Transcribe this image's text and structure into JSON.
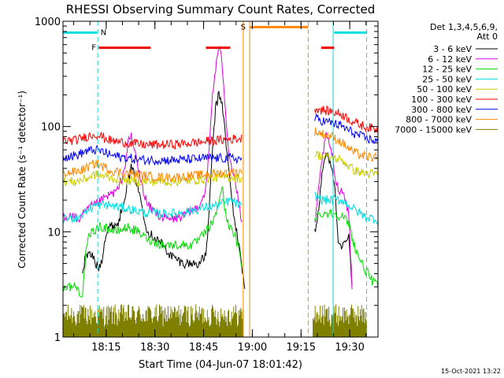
{
  "chart_data": {
    "type": "line",
    "title": "RHESSI Observing Summary Count Rates, Corrected",
    "xlabel": "Start Time (04-Jun-07 18:01:42)",
    "ylabel": "Corrected Count Rate (s⁻¹ detector⁻¹)",
    "timestamp": "15-Oct-2021 13:22",
    "x_range_minutes": [
      0,
      97
    ],
    "x_ticks": [
      {
        "label": "18:15",
        "min": 13.3
      },
      {
        "label": "18:30",
        "min": 28.3
      },
      {
        "label": "18:45",
        "min": 43.3
      },
      {
        "label": "19:00",
        "min": 58.3
      },
      {
        "label": "19:15",
        "min": 73.3
      },
      {
        "label": "19:30",
        "min": 88.3
      }
    ],
    "y_scale": "log",
    "ylim": [
      1,
      1000
    ],
    "y_ticks": [
      {
        "label": "1",
        "value": 1
      },
      {
        "label": "10",
        "value": 10
      },
      {
        "label": "100",
        "value": 100
      },
      {
        "label": "1000",
        "value": 1000
      }
    ],
    "legend_header": [
      "Det 1,3,4,5,6,9,",
      "Att 0"
    ],
    "series": [
      {
        "name": "3 - 6 keV",
        "color": "#000000",
        "points": [
          [
            6,
            4
          ],
          [
            7,
            6
          ],
          [
            9,
            6
          ],
          [
            10,
            5
          ],
          [
            11,
            4.5
          ],
          [
            12,
            5.5
          ],
          [
            13,
            9
          ],
          [
            14,
            11
          ],
          [
            17,
            12
          ],
          [
            18,
            16
          ],
          [
            20,
            30
          ],
          [
            21,
            40
          ],
          [
            22,
            35
          ],
          [
            24,
            20
          ],
          [
            25,
            14
          ],
          [
            26,
            10
          ],
          [
            28,
            9
          ],
          [
            30,
            8
          ],
          [
            33,
            6
          ],
          [
            37,
            5
          ],
          [
            40,
            5
          ],
          [
            42,
            5
          ],
          [
            44,
            6
          ],
          [
            45,
            15
          ],
          [
            46,
            60
          ],
          [
            47,
            150
          ],
          [
            48,
            200
          ],
          [
            49,
            170
          ],
          [
            50,
            80
          ],
          [
            51,
            40
          ],
          [
            52,
            20
          ],
          [
            53,
            12
          ],
          [
            54,
            8
          ],
          [
            55,
            5
          ],
          [
            56,
            3
          ]
        ],
        "segments": [
          [
            [
              77.5,
              10
            ],
            [
              78,
              11
            ],
            [
              79,
              20
            ],
            [
              80,
              40
            ],
            [
              81,
              55
            ],
            [
              82,
              50
            ],
            [
              83,
              40
            ],
            [
              84,
              20
            ],
            [
              84.5,
              10
            ],
            [
              85,
              7
            ],
            [
              86,
              7
            ],
            [
              87,
              8
            ],
            [
              88,
              9
            ],
            [
              89,
              3
            ]
          ]
        ]
      },
      {
        "name": "6 - 12 keV",
        "color": "#dd00dd",
        "points": [
          [
            0,
            14
          ],
          [
            3,
            14
          ],
          [
            5,
            13
          ],
          [
            8,
            17
          ],
          [
            10,
            18
          ],
          [
            12,
            20
          ],
          [
            14,
            22
          ],
          [
            17,
            25
          ],
          [
            19,
            40
          ],
          [
            20,
            70
          ],
          [
            21,
            80
          ],
          [
            22,
            60
          ],
          [
            24,
            30
          ],
          [
            26,
            18
          ],
          [
            30,
            14
          ],
          [
            33,
            13
          ],
          [
            37,
            14
          ],
          [
            40,
            16
          ],
          [
            42,
            18
          ],
          [
            44,
            25
          ],
          [
            45,
            60
          ],
          [
            46,
            200
          ],
          [
            47,
            350
          ],
          [
            48,
            580
          ],
          [
            49,
            400
          ],
          [
            50,
            150
          ],
          [
            51,
            60
          ],
          [
            52,
            40
          ],
          [
            53,
            30
          ],
          [
            54,
            20
          ],
          [
            55,
            12
          ]
        ],
        "segments": [
          [
            [
              77.5,
              12
            ],
            [
              78,
              15
            ],
            [
              79,
              30
            ],
            [
              80,
              55
            ],
            [
              81,
              80
            ],
            [
              82,
              70
            ],
            [
              83,
              50
            ],
            [
              84,
              30
            ],
            [
              85,
              25
            ],
            [
              86,
              25
            ],
            [
              87,
              20
            ],
            [
              88,
              15
            ],
            [
              89,
              3
            ]
          ]
        ]
      },
      {
        "name": "12 - 25 keV",
        "color": "#00dd00",
        "points": [
          [
            0,
            3
          ],
          [
            4,
            3
          ],
          [
            6,
            2.5
          ],
          [
            7,
            6
          ],
          [
            8,
            9
          ],
          [
            9,
            10
          ],
          [
            11,
            11
          ],
          [
            13,
            11
          ],
          [
            16,
            10
          ],
          [
            20,
            11
          ],
          [
            23,
            10
          ],
          [
            25,
            9
          ],
          [
            28,
            8
          ],
          [
            31,
            7.5
          ],
          [
            35,
            7.5
          ],
          [
            38,
            7.5
          ],
          [
            40,
            7.5
          ],
          [
            42,
            8.5
          ],
          [
            44,
            10
          ],
          [
            45,
            11
          ],
          [
            47,
            14
          ],
          [
            48,
            20
          ],
          [
            49,
            27
          ],
          [
            50,
            15
          ],
          [
            51,
            12
          ],
          [
            52,
            10
          ],
          [
            53,
            9
          ],
          [
            54,
            7
          ],
          [
            55,
            5
          ]
        ],
        "segments": [
          [
            [
              77.5,
              14
            ],
            [
              80,
              15
            ],
            [
              83,
              15
            ],
            [
              86,
              14
            ],
            [
              88,
              12
            ],
            [
              89,
              9
            ],
            [
              90,
              7
            ],
            [
              92,
              5
            ],
            [
              95,
              3.5
            ],
            [
              97,
              3
            ]
          ]
        ]
      },
      {
        "name": "25 - 50 keV",
        "color": "#00dddd",
        "points": [
          [
            0,
            13
          ],
          [
            5,
            14
          ],
          [
            10,
            18
          ],
          [
            14,
            18
          ],
          [
            18,
            17
          ],
          [
            22,
            16
          ],
          [
            26,
            15
          ],
          [
            30,
            15
          ],
          [
            35,
            15
          ],
          [
            40,
            16
          ],
          [
            44,
            17
          ],
          [
            48,
            18
          ],
          [
            52,
            20
          ],
          [
            55,
            17
          ]
        ],
        "segments": [
          [
            [
              77.5,
              22
            ],
            [
              80,
              20
            ],
            [
              83,
              20
            ],
            [
              86,
              20
            ],
            [
              88,
              18
            ],
            [
              90,
              16
            ],
            [
              93,
              14
            ],
            [
              97,
              13
            ]
          ]
        ]
      },
      {
        "name": "50 - 100 keV",
        "color": "#cccc00",
        "points": [
          [
            0,
            30
          ],
          [
            4,
            30
          ],
          [
            7,
            32
          ],
          [
            10,
            35
          ],
          [
            14,
            33
          ],
          [
            18,
            31
          ],
          [
            22,
            30
          ],
          [
            26,
            30
          ],
          [
            30,
            30
          ],
          [
            35,
            30
          ],
          [
            40,
            31
          ],
          [
            44,
            32
          ],
          [
            48,
            33
          ],
          [
            52,
            33
          ],
          [
            55,
            32
          ]
        ],
        "segments": [
          [
            [
              77.5,
              55
            ],
            [
              80,
              52
            ],
            [
              83,
              50
            ],
            [
              86,
              48
            ],
            [
              88,
              42
            ],
            [
              90,
              38
            ],
            [
              93,
              36
            ],
            [
              97,
              35
            ]
          ]
        ]
      },
      {
        "name": "100 - 300 keV",
        "color": "#ff0000",
        "points": [
          [
            0,
            73
          ],
          [
            4,
            74
          ],
          [
            7,
            80
          ],
          [
            10,
            85
          ],
          [
            12,
            80
          ],
          [
            15,
            73
          ],
          [
            20,
            70
          ],
          [
            25,
            67
          ],
          [
            30,
            67
          ],
          [
            35,
            68
          ],
          [
            40,
            70
          ],
          [
            44,
            72
          ],
          [
            48,
            74
          ],
          [
            52,
            76
          ],
          [
            55,
            77
          ]
        ],
        "segments": [
          [
            [
              77.5,
              150
            ],
            [
              80,
              143
            ],
            [
              83,
              138
            ],
            [
              86,
              130
            ],
            [
              88,
              118
            ],
            [
              90,
              108
            ],
            [
              93,
              100
            ],
            [
              97,
              93
            ]
          ]
        ]
      },
      {
        "name": "300 - 800 keV",
        "color": "#0000ff",
        "points": [
          [
            0,
            52
          ],
          [
            4,
            53
          ],
          [
            7,
            58
          ],
          [
            10,
            60
          ],
          [
            12,
            58
          ],
          [
            15,
            53
          ],
          [
            20,
            50
          ],
          [
            25,
            48
          ],
          [
            30,
            48
          ],
          [
            35,
            48
          ],
          [
            40,
            49
          ],
          [
            44,
            50
          ],
          [
            48,
            50
          ],
          [
            52,
            50
          ],
          [
            55,
            49
          ]
        ],
        "segments": [
          [
            [
              77.5,
              120
            ],
            [
              80,
              113
            ],
            [
              83,
              108
            ],
            [
              86,
              100
            ],
            [
              88,
              92
            ],
            [
              90,
              85
            ],
            [
              93,
              78
            ],
            [
              97,
              72
            ]
          ]
        ]
      },
      {
        "name": "800 - 7000 keV",
        "color": "#ff8800",
        "points": [
          [
            0,
            36
          ],
          [
            4,
            37
          ],
          [
            7,
            40
          ],
          [
            10,
            45
          ],
          [
            12,
            42
          ],
          [
            15,
            38
          ],
          [
            20,
            36
          ],
          [
            25,
            34
          ],
          [
            30,
            33
          ],
          [
            35,
            33
          ],
          [
            40,
            34
          ],
          [
            44,
            35
          ],
          [
            48,
            36
          ],
          [
            52,
            37
          ],
          [
            55,
            37
          ]
        ],
        "segments": [
          [
            [
              77.5,
              90
            ],
            [
              80,
              85
            ],
            [
              83,
              80
            ],
            [
              86,
              70
            ],
            [
              88,
              62
            ],
            [
              90,
              56
            ],
            [
              93,
              52
            ],
            [
              97,
              50
            ]
          ]
        ]
      },
      {
        "name": "7000 - 15000 keV",
        "color": "#808000",
        "points": [],
        "segments": []
      }
    ],
    "bars": [
      {
        "label": "N",
        "color": "#00dddd",
        "y_value": 780,
        "ranges": [
          [
            0,
            10.5
          ],
          [
            83.5,
            93.5
          ]
        ],
        "label_at_min": 12.5
      },
      {
        "label": "F",
        "color": "#ee0000",
        "y_value": 560,
        "ranges": [
          [
            11,
            27
          ],
          [
            44,
            51.5
          ],
          [
            79.5,
            83.5
          ]
        ],
        "label_at_min": 9.5
      },
      {
        "label": "S",
        "color": "#ff8800",
        "y_value": 880,
        "ranges": [
          [
            57.5,
            75.5
          ]
        ],
        "label_at_min": 55.5
      }
    ],
    "vertical_lines": [
      {
        "min": 10.7,
        "style": "dashed",
        "color": "#00dddd"
      },
      {
        "min": 55.5,
        "style": "solid",
        "color": "#ff8800"
      },
      {
        "min": 57.5,
        "style": "solid",
        "color": "#ff8800"
      },
      {
        "min": 75.5,
        "style": "dashed",
        "color": "#ff8800"
      },
      {
        "min": 83.2,
        "style": "solid",
        "color": "#00dddd"
      },
      {
        "min": 93.5,
        "style": "dashed",
        "color": "#00dddd"
      }
    ],
    "low_band_ranges": [
      [
        0,
        55.5
      ],
      [
        77,
        93.5
      ]
    ]
  }
}
